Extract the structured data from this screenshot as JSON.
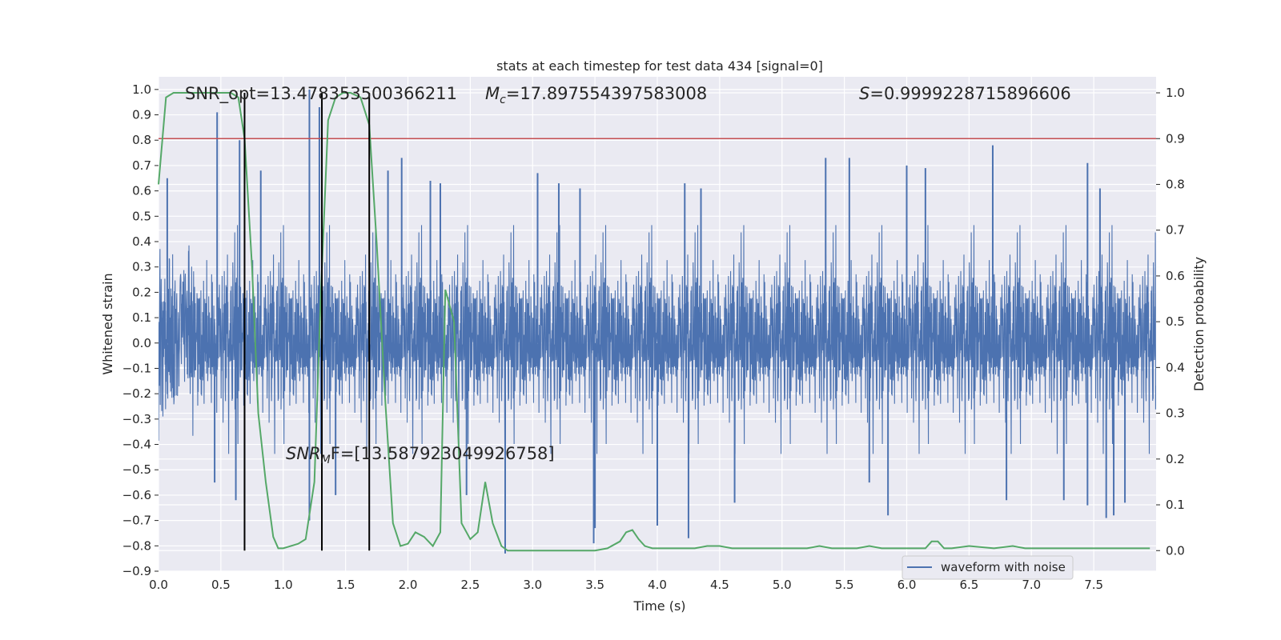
{
  "chart_data": {
    "type": "line",
    "title": "stats at each timestep for test data 434 [signal=0]",
    "xlabel": "Time (s)",
    "ylabel": "Whitened strain",
    "y2label": "Detection probability",
    "xlim": [
      0.0,
      8.0
    ],
    "ylim": [
      -0.9,
      1.05
    ],
    "y2lim": [
      -0.045,
      1.035
    ],
    "grid": true,
    "legend": {
      "placement": "lower-right",
      "entries": [
        "waveform with noise"
      ]
    },
    "x_ticks": [
      "0.0",
      "0.5",
      "1.0",
      "1.5",
      "2.0",
      "2.5",
      "3.0",
      "3.5",
      "4.0",
      "4.5",
      "5.0",
      "5.5",
      "6.0",
      "6.5",
      "7.0",
      "7.5"
    ],
    "y_ticks": [
      "1.0",
      "0.9",
      "0.8",
      "0.7",
      "0.6",
      "0.5",
      "0.4",
      "0.3",
      "0.2",
      "0.1",
      "0.0",
      "−0.1",
      "−0.2",
      "−0.3",
      "−0.4",
      "−0.5",
      "−0.6",
      "−0.7",
      "−0.8",
      "−0.9"
    ],
    "y2_ticks": [
      "1.0",
      "0.9",
      "0.8",
      "0.7",
      "0.6",
      "0.5",
      "0.4",
      "0.3",
      "0.2",
      "0.1",
      "0.0"
    ],
    "annotations": {
      "snr_opt": "SNR_opt=13.478353500366211",
      "mc_symbol": "M",
      "mc_sub": "c",
      "mc_value": "=17.897554397583008",
      "s_symbol": "S",
      "s_value": "=0.9999228715896606",
      "snr_mf_symbol": "SNR",
      "snr_mf_sub": "M",
      "snr_mf_value": "F=[13.587923049926758]"
    },
    "threshold": {
      "value": 0.9,
      "axis": "y2",
      "color": "#c44e52"
    },
    "vertical_lines": [
      0.69,
      1.31,
      1.69
    ],
    "series": [
      {
        "name": "waveform with noise",
        "axis": "y",
        "color": "#4c72b0",
        "kind": "noise",
        "envelope_typical": [
          -0.45,
          0.45
        ],
        "spikes": [
          [
            0.07,
            0.65
          ],
          [
            0.47,
            0.91
          ],
          [
            0.65,
            0.8
          ],
          [
            0.82,
            0.68
          ],
          [
            1.21,
            1.0
          ],
          [
            1.29,
            0.93
          ],
          [
            1.84,
            0.68
          ],
          [
            1.95,
            0.73
          ],
          [
            2.18,
            0.64
          ],
          [
            2.26,
            0.63
          ],
          [
            3.04,
            0.67
          ],
          [
            3.21,
            0.63
          ],
          [
            3.38,
            0.61
          ],
          [
            4.22,
            0.63
          ],
          [
            4.35,
            0.61
          ],
          [
            5.35,
            0.73
          ],
          [
            5.54,
            0.73
          ],
          [
            6.0,
            0.7
          ],
          [
            6.15,
            0.69
          ],
          [
            6.69,
            0.78
          ],
          [
            7.45,
            0.71
          ],
          [
            7.55,
            0.61
          ],
          [
            0.45,
            -0.55
          ],
          [
            0.62,
            -0.62
          ],
          [
            0.69,
            -0.63
          ],
          [
            1.21,
            -0.7
          ],
          [
            1.42,
            -0.6
          ],
          [
            2.47,
            -0.6
          ],
          [
            2.78,
            -0.83
          ],
          [
            3.49,
            -0.79
          ],
          [
            3.5,
            -0.73
          ],
          [
            4.25,
            -0.77
          ],
          [
            4.62,
            -0.63
          ],
          [
            5.85,
            -0.68
          ],
          [
            6.8,
            -0.62
          ],
          [
            7.26,
            -0.62
          ],
          [
            7.45,
            -0.64
          ],
          [
            7.6,
            -0.69
          ],
          [
            7.66,
            -0.68
          ],
          [
            7.75,
            -0.63
          ],
          [
            4.0,
            -0.72
          ],
          [
            5.7,
            -0.55
          ]
        ]
      },
      {
        "name": "detection probability",
        "axis": "y2",
        "color": "#55a868",
        "x": [
          0.0,
          0.06,
          0.12,
          0.2,
          0.3,
          0.4,
          0.5,
          0.58,
          0.64,
          0.69,
          0.75,
          0.8,
          0.86,
          0.92,
          0.96,
          1.0,
          1.06,
          1.12,
          1.18,
          1.25,
          1.3,
          1.36,
          1.42,
          1.48,
          1.54,
          1.62,
          1.69,
          1.75,
          1.82,
          1.88,
          1.94,
          2.0,
          2.06,
          2.13,
          2.2,
          2.26,
          2.3,
          2.33,
          2.37,
          2.43,
          2.5,
          2.56,
          2.62,
          2.68,
          2.75,
          2.8,
          2.9,
          3.0,
          3.2,
          3.4,
          3.5,
          3.6,
          3.7,
          3.75,
          3.8,
          3.85,
          3.9,
          3.96,
          4.05,
          4.2,
          4.3,
          4.4,
          4.5,
          4.6,
          4.8,
          5.0,
          5.2,
          5.3,
          5.4,
          5.6,
          5.7,
          5.8,
          6.0,
          6.15,
          6.2,
          6.25,
          6.3,
          6.36,
          6.5,
          6.7,
          6.85,
          6.95,
          7.1,
          7.25,
          7.5,
          7.75,
          7.95
        ],
        "y": [
          0.8,
          0.99,
          1.0,
          1.0,
          1.0,
          1.0,
          1.0,
          1.0,
          0.99,
          0.9,
          0.62,
          0.3,
          0.15,
          0.03,
          0.005,
          0.005,
          0.01,
          0.015,
          0.025,
          0.15,
          0.55,
          0.94,
          0.99,
          1.0,
          1.0,
          0.99,
          0.93,
          0.67,
          0.32,
          0.06,
          0.01,
          0.015,
          0.04,
          0.03,
          0.01,
          0.04,
          0.57,
          0.54,
          0.5,
          0.06,
          0.025,
          0.04,
          0.15,
          0.06,
          0.01,
          0.0,
          0.0,
          0.0,
          0.0,
          0.0,
          0.0,
          0.005,
          0.02,
          0.04,
          0.045,
          0.025,
          0.01,
          0.005,
          0.005,
          0.005,
          0.005,
          0.01,
          0.01,
          0.005,
          0.005,
          0.005,
          0.005,
          0.01,
          0.005,
          0.005,
          0.01,
          0.005,
          0.005,
          0.005,
          0.02,
          0.02,
          0.005,
          0.005,
          0.01,
          0.005,
          0.01,
          0.005,
          0.005,
          0.005,
          0.005,
          0.005,
          0.005
        ]
      }
    ]
  }
}
